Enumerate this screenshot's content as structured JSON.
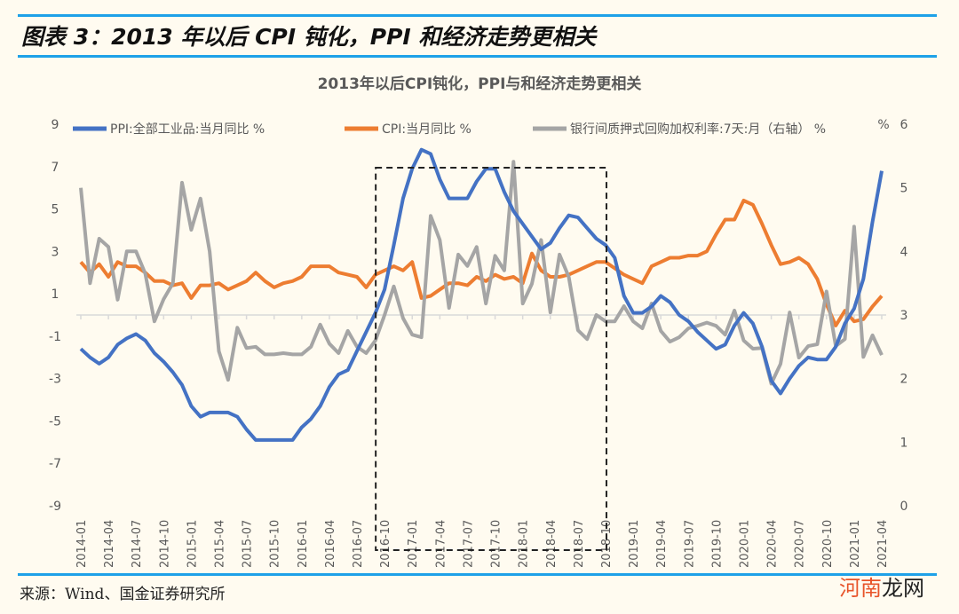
{
  "figure_title": "图表 3：2013 年以后 CPI 钝化，PPI 和经济走势更相关",
  "source": "来源：Wind、国金证券研究所",
  "watermark": "河南龙网",
  "colors": {
    "ppi": "#4472c4",
    "cpi": "#ed7d31",
    "repo": "#a5a5a5",
    "rule": "#1ea1e8",
    "background": "#fffbf0"
  },
  "chart_data": {
    "type": "line",
    "title": "2013年以后CPI钝化，PPI与和经济走势更相关",
    "y_left": {
      "range": [
        -9,
        9
      ],
      "ticks": [
        "9",
        "7",
        "5",
        "3",
        "1",
        "-1",
        "-3",
        "-5",
        "-7",
        "-9"
      ]
    },
    "y_right": {
      "range": [
        0,
        6
      ],
      "ticks": [
        "6",
        "5",
        "4",
        "3",
        "2",
        "1",
        "0"
      ],
      "unit": "%"
    },
    "x_start": "2014-01",
    "x_tick_labels": [
      "2014-01",
      "2014-04",
      "2014-07",
      "2014-10",
      "2015-01",
      "2015-04",
      "2015-07",
      "2015-10",
      "2016-01",
      "2016-04",
      "2016-07",
      "2016-10",
      "2017-01",
      "2017-04",
      "2017-07",
      "2017-10",
      "2018-01",
      "2018-04",
      "2018-07",
      "2018-10",
      "2019-01",
      "2019-04",
      "2019-07",
      "2019-10",
      "2020-01",
      "2020-04",
      "2020-07",
      "2020-10",
      "2021-01",
      "2021-04"
    ],
    "legend_placement": "top",
    "highlight_box": {
      "from": "2016-10",
      "to": "2018-10",
      "style": "dashed"
    },
    "series": [
      {
        "name": "PPI:全部工业品:当月同比",
        "axis": "left",
        "color": "#4472c4",
        "values": [
          -1.6,
          -2.0,
          -2.3,
          -2.0,
          -1.4,
          -1.1,
          -0.9,
          -1.2,
          -1.8,
          -2.2,
          -2.7,
          -3.3,
          -4.3,
          -4.8,
          -4.6,
          -4.6,
          -4.6,
          -4.8,
          -5.4,
          -5.9,
          -5.9,
          -5.9,
          -5.9,
          -5.9,
          -5.3,
          -4.9,
          -4.3,
          -3.4,
          -2.8,
          -2.6,
          -1.7,
          -0.8,
          0.1,
          1.2,
          3.3,
          5.5,
          6.9,
          7.8,
          7.6,
          6.4,
          5.5,
          5.5,
          5.5,
          6.3,
          6.9,
          6.9,
          5.8,
          4.9,
          4.3,
          3.7,
          3.1,
          3.4,
          4.1,
          4.7,
          4.6,
          4.1,
          3.6,
          3.3,
          2.7,
          0.9,
          0.1,
          0.1,
          0.4,
          0.9,
          0.6,
          0.0,
          -0.3,
          -0.8,
          -1.2,
          -1.6,
          -1.4,
          -0.5,
          0.1,
          -0.4,
          -1.5,
          -3.1,
          -3.7,
          -3.0,
          -2.4,
          -2.0,
          -2.1,
          -2.1,
          -1.5,
          -0.4,
          0.3,
          1.7,
          4.4,
          6.8
        ]
      },
      {
        "name": "CPI:当月同比",
        "axis": "left",
        "color": "#ed7d31",
        "values": [
          2.5,
          2.0,
          2.4,
          1.8,
          2.5,
          2.3,
          2.3,
          2.0,
          1.6,
          1.6,
          1.4,
          1.5,
          0.8,
          1.4,
          1.4,
          1.5,
          1.2,
          1.4,
          1.6,
          2.0,
          1.6,
          1.3,
          1.5,
          1.6,
          1.8,
          2.3,
          2.3,
          2.3,
          2.0,
          1.9,
          1.8,
          1.3,
          1.9,
          2.1,
          2.3,
          2.1,
          2.5,
          0.8,
          0.9,
          1.2,
          1.5,
          1.5,
          1.4,
          1.8,
          1.6,
          1.9,
          1.7,
          1.8,
          1.5,
          2.9,
          2.1,
          1.8,
          1.8,
          1.9,
          2.1,
          2.3,
          2.5,
          2.5,
          2.2,
          1.9,
          1.7,
          1.5,
          2.3,
          2.5,
          2.7,
          2.7,
          2.8,
          2.8,
          3.0,
          3.8,
          4.5,
          4.5,
          5.4,
          5.2,
          4.3,
          3.3,
          2.4,
          2.5,
          2.7,
          2.4,
          1.7,
          0.5,
          -0.5,
          0.2,
          -0.3,
          -0.2,
          0.4,
          0.9
        ]
      },
      {
        "name": "银行间质押式回购加权利率:7天:月（右轴）",
        "axis": "right",
        "color": "#a5a5a5",
        "values": [
          5.0,
          3.5,
          4.2,
          4.07,
          3.24,
          4.0,
          4.0,
          3.65,
          2.9,
          3.25,
          3.5,
          5.08,
          4.34,
          4.83,
          4.0,
          2.43,
          1.98,
          2.8,
          2.48,
          2.5,
          2.38,
          2.38,
          2.4,
          2.38,
          2.38,
          2.5,
          2.85,
          2.55,
          2.4,
          2.75,
          2.5,
          2.4,
          2.6,
          3.0,
          3.45,
          2.95,
          2.69,
          2.65,
          4.56,
          4.18,
          3.11,
          3.95,
          3.77,
          4.07,
          3.18,
          3.93,
          3.7,
          5.41,
          3.18,
          3.49,
          4.18,
          3.04,
          3.95,
          3.6,
          2.76,
          2.62,
          3.0,
          2.9,
          2.9,
          3.14,
          2.9,
          2.79,
          3.18,
          2.75,
          2.58,
          2.65,
          2.79,
          2.83,
          2.88,
          2.83,
          2.69,
          3.07,
          2.6,
          2.47,
          2.48,
          1.92,
          2.23,
          3.04,
          2.33,
          2.51,
          2.54,
          3.37,
          2.51,
          2.62,
          4.39,
          2.34,
          2.68,
          2.37
        ]
      }
    ],
    "legend": [
      "PPI:全部工业品:当月同比 %",
      "CPI:当月同比 %",
      "银行间质押式回购加权利率:7天:月（右轴） %"
    ]
  }
}
